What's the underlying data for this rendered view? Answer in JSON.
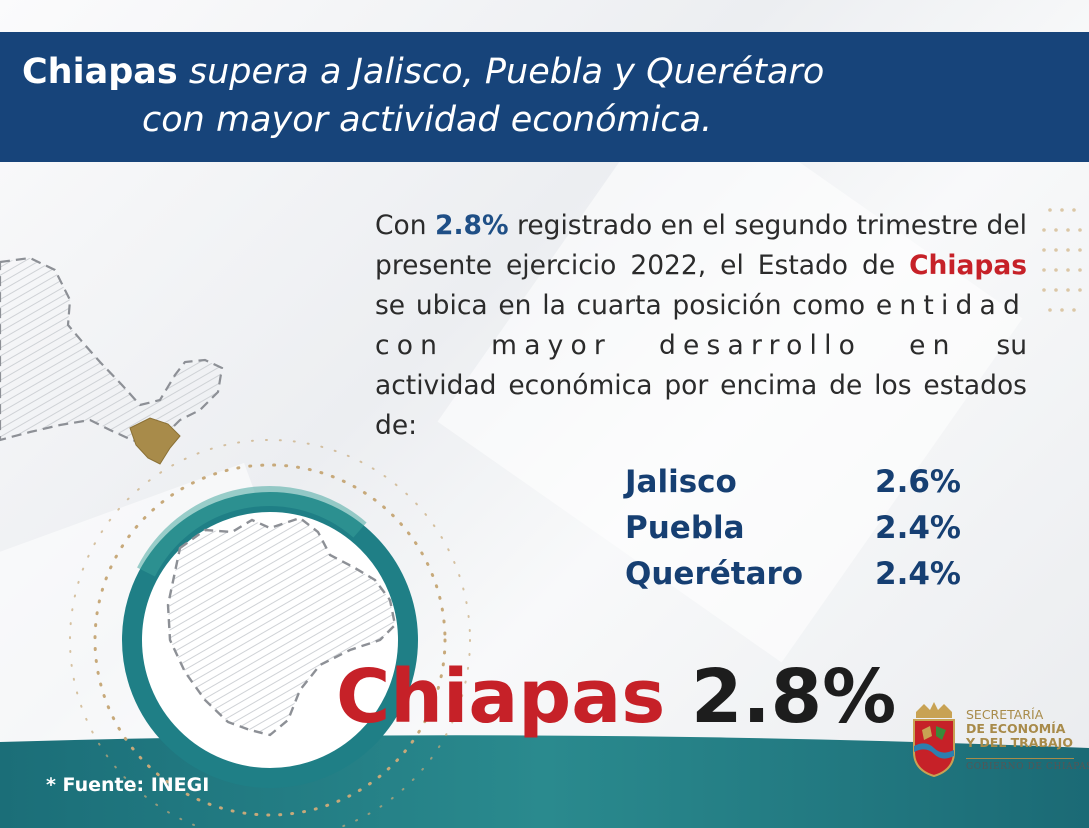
{
  "banner": {
    "line1_bold": "Chiapas",
    "line1_rest": " supera a Jalisco, Puebla y Querétaro",
    "line2": "con mayor actividad económica."
  },
  "paragraph": {
    "p1": "Con ",
    "highlight_pct": "2.8%",
    "p2": " registrado en el segundo trimestre del presente ejercicio 2022, el Estado de ",
    "highlight_state": "Chiapas",
    "p3": " se ubica en la cuarta posición como ",
    "p4": "entidad con mayor desarrollo en",
    "p5": " su actividad económica por encima de los estados de:"
  },
  "states": [
    {
      "name": "Jalisco",
      "pct": "2.6%"
    },
    {
      "name": "Puebla",
      "pct": "2.4%"
    },
    {
      "name": "Querétaro",
      "pct": "2.4%"
    }
  ],
  "headline": {
    "name": "Chiapas",
    "pct": "2.8%"
  },
  "source": "* Fuente: INEGI",
  "logo": {
    "line1": "SECRETARÍA",
    "line2": "DE ECONOMÍA",
    "line3": "Y DEL TRABAJO",
    "line4": "GOBIERNO DE CHIAPAS"
  },
  "colors": {
    "banner": "#17447a",
    "accent_red": "#c62128",
    "accent_blue": "#1f4f86",
    "teal": "#1f7f86",
    "gold": "#a88b4a"
  },
  "icons": [
    "mexico-map-icon",
    "chiapas-map-icon",
    "coat-of-arms-icon"
  ]
}
